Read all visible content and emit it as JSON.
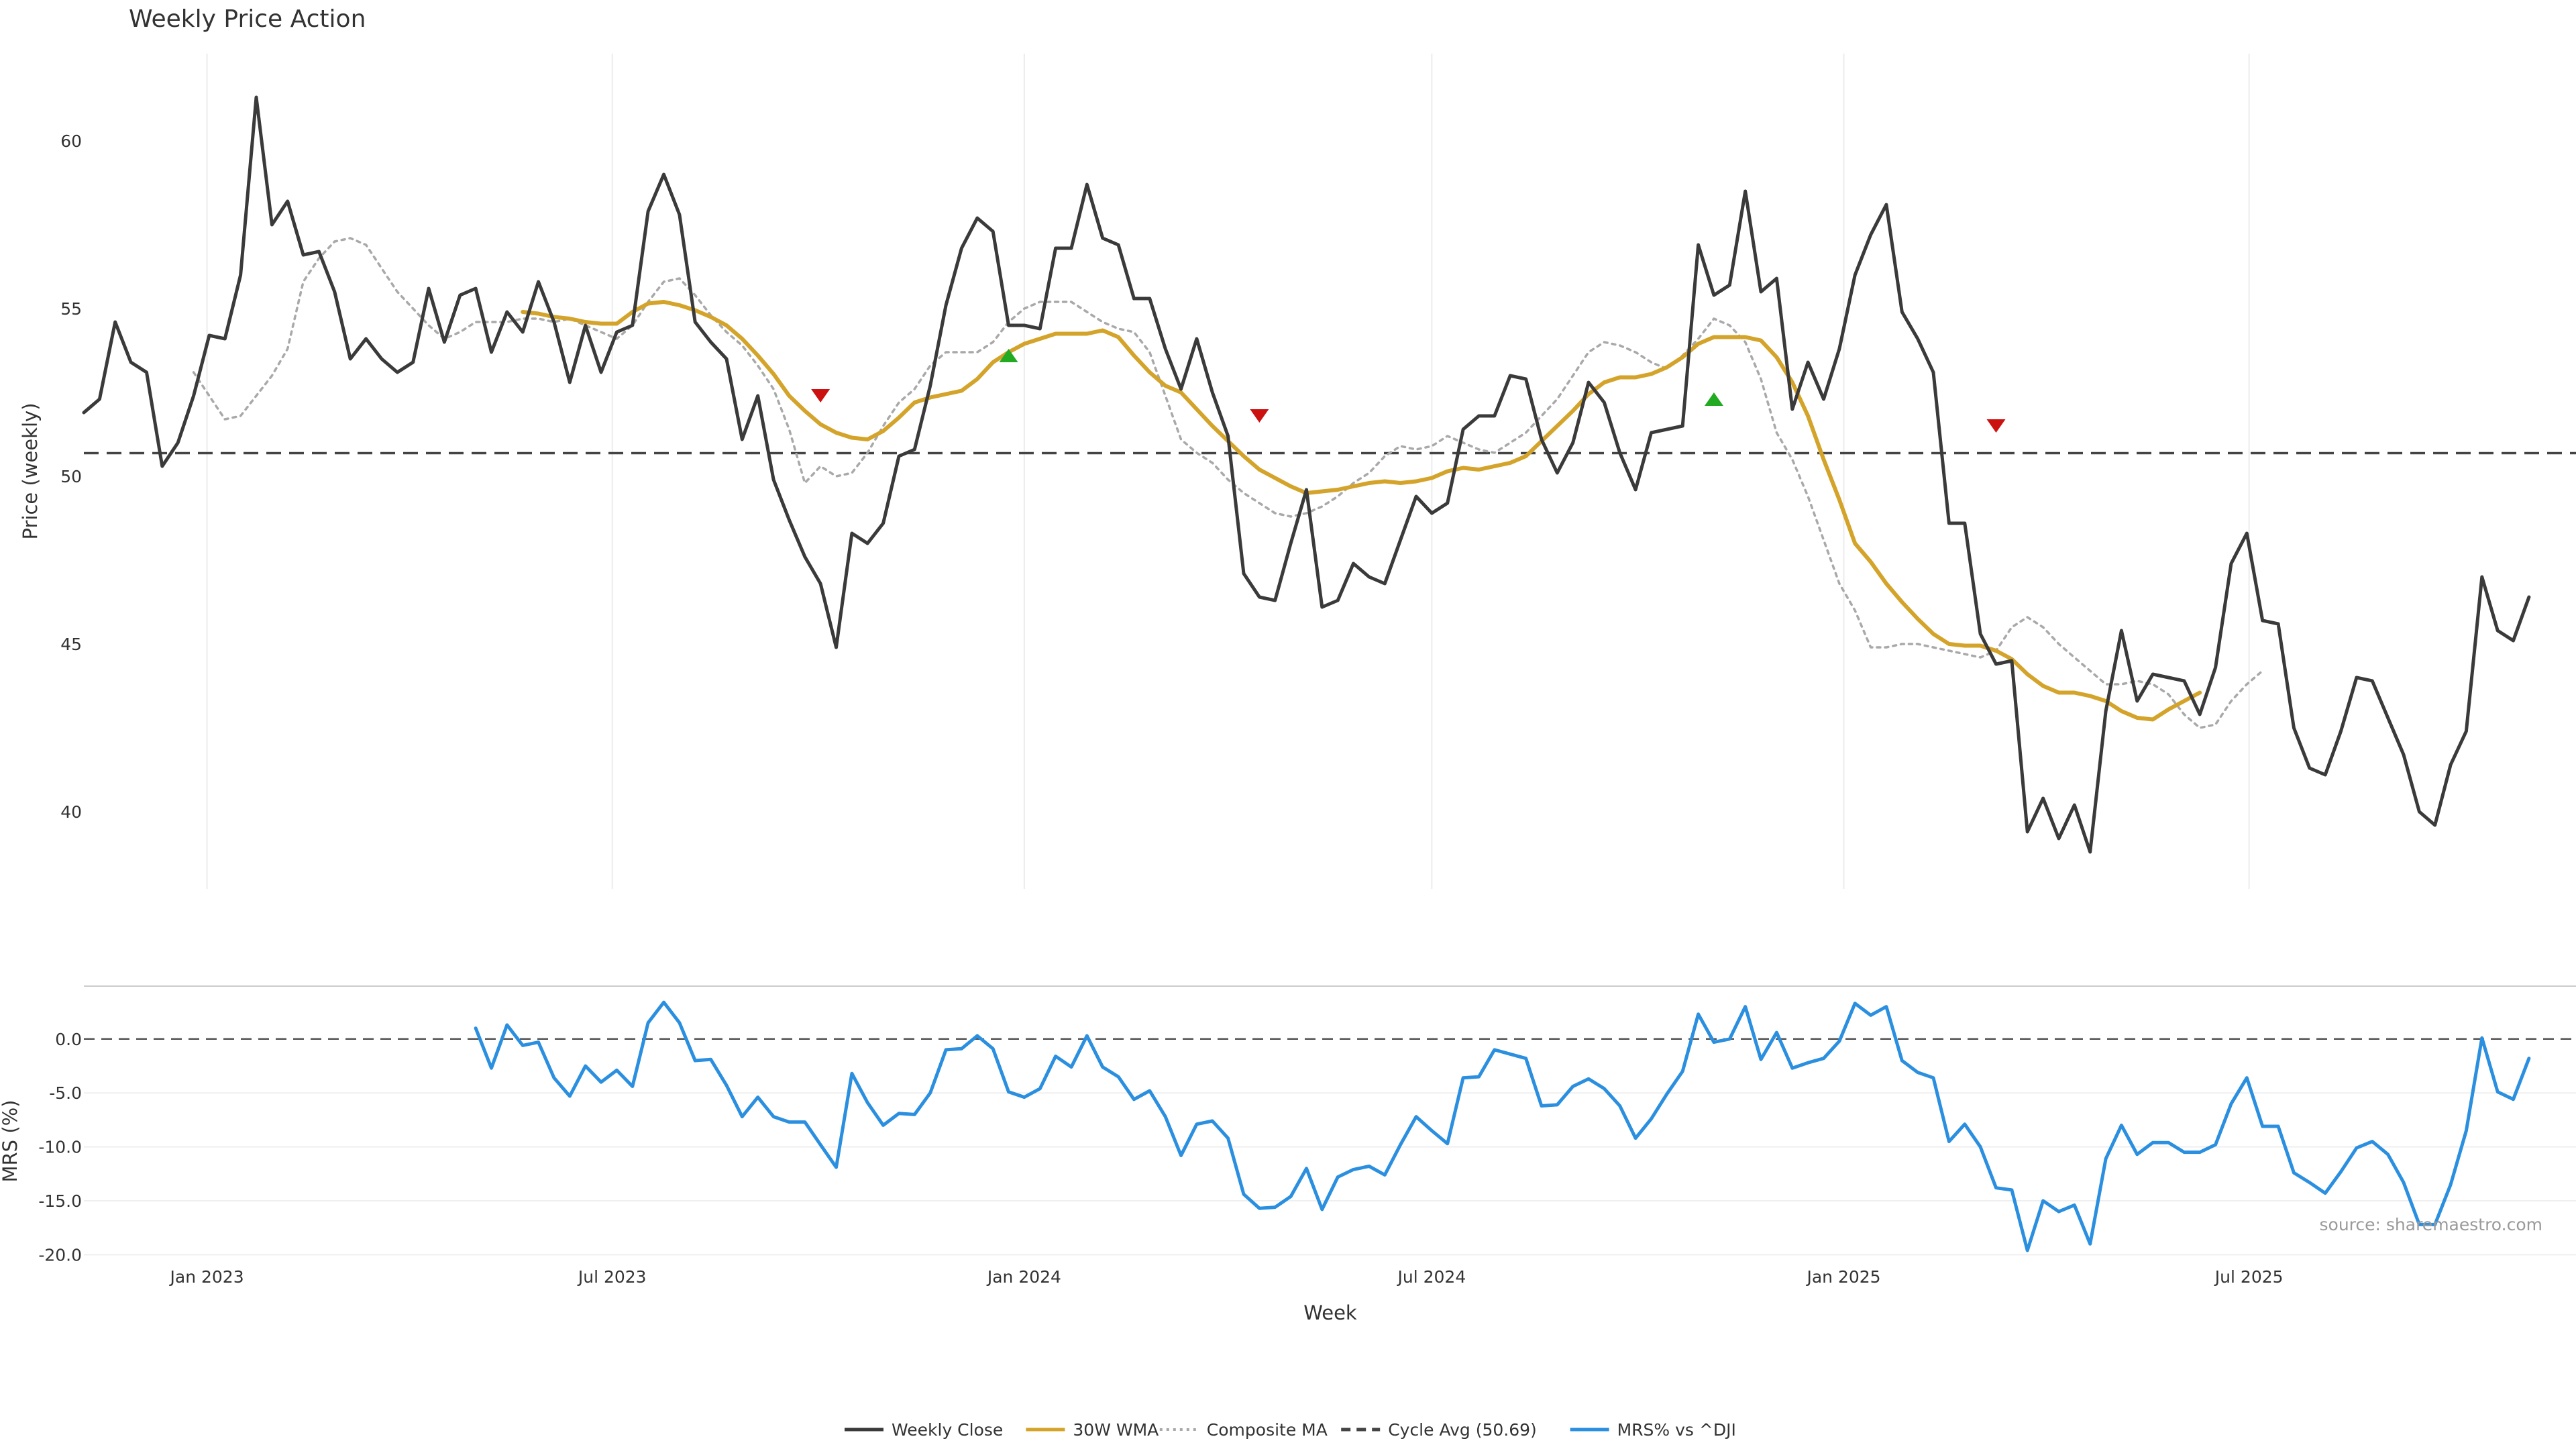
{
  "chart_data": {
    "title": "Weekly Price Action",
    "source": "source: sharemaestro.com",
    "x_label": "Week",
    "x_ticks": [
      {
        "date": "2023-01-01",
        "label": "Jan 2023"
      },
      {
        "date": "2023-07-01",
        "label": "Jul 2023"
      },
      {
        "date": "2024-01-01",
        "label": "Jan 2024"
      },
      {
        "date": "2024-07-01",
        "label": "Jul 2024"
      },
      {
        "date": "2025-01-01",
        "label": "Jan 2025"
      },
      {
        "date": "2025-07-01",
        "label": "Jul 2025"
      }
    ],
    "x_range": [
      "2022-11-07",
      "2025-11-24"
    ],
    "price_panel": {
      "type": "line",
      "ylabel": "Price (weekly)",
      "ylim": [
        37.7,
        62.6
      ],
      "y_ticks": [
        "40",
        "45",
        "50",
        "55",
        "60"
      ],
      "grid_x": true,
      "cycle_avg": 50.69,
      "series": [
        {
          "name": "Weekly Close",
          "color": "#3a3a3a",
          "style": "solid",
          "start_date": "2022-11-07",
          "values": [
            51.9,
            52.3,
            54.6,
            53.4,
            53.1,
            50.3,
            51.0,
            52.4,
            54.2,
            54.1,
            56.0,
            61.3,
            57.5,
            58.2,
            56.6,
            56.7,
            55.5,
            53.5,
            54.1,
            53.5,
            53.1,
            53.4,
            55.6,
            54.0,
            55.4,
            55.6,
            53.7,
            54.9,
            54.3,
            55.8,
            54.6,
            52.8,
            54.5,
            53.1,
            54.3,
            54.5,
            57.9,
            59.0,
            57.8,
            54.6,
            54.0,
            53.5,
            51.1,
            52.4,
            49.9,
            48.7,
            47.6,
            46.8,
            44.9,
            48.3,
            48.0,
            48.6,
            50.6,
            50.8,
            52.7,
            55.1,
            56.8,
            57.7,
            57.3,
            54.5,
            54.5,
            54.4,
            56.8,
            56.8,
            58.7,
            57.1,
            56.9,
            55.3,
            55.3,
            53.8,
            52.6,
            54.1,
            52.5,
            51.2,
            47.1,
            46.4,
            46.3,
            48.0,
            49.6,
            46.1,
            46.3,
            47.4,
            47.0,
            46.8,
            48.1,
            49.4,
            48.9,
            49.2,
            51.4,
            51.8,
            51.8,
            53.0,
            52.9,
            51.1,
            50.1,
            51.0,
            52.8,
            52.2,
            50.7,
            49.6,
            51.3,
            51.4,
            51.5,
            56.9,
            55.4,
            55.7,
            58.5,
            55.5,
            55.9,
            52.0,
            53.4,
            52.3,
            53.8,
            56.0,
            57.2,
            58.1,
            54.9,
            54.1,
            53.1,
            48.6,
            48.6,
            45.3,
            44.4,
            44.5,
            39.4,
            40.4,
            39.2,
            40.2,
            38.8,
            43.0,
            45.4,
            43.3,
            44.1,
            44.0,
            43.9,
            42.9,
            44.3,
            47.4,
            48.3,
            45.7,
            45.6,
            42.5,
            41.3,
            41.1,
            42.4,
            44.0,
            43.9,
            42.8,
            41.7,
            40.0,
            39.6,
            41.4,
            42.4,
            47.0,
            45.4,
            45.1,
            46.4
          ]
        },
        {
          "name": "30W WMA",
          "color": "#d4a32a",
          "style": "solid",
          "start_date": "2023-05-22",
          "values": [
            54.9,
            54.85,
            54.75,
            54.7,
            54.6,
            54.55,
            54.55,
            54.9,
            55.15,
            55.2,
            55.1,
            54.95,
            54.75,
            54.5,
            54.1,
            53.6,
            53.05,
            52.4,
            51.95,
            51.55,
            51.3,
            51.15,
            51.1,
            51.35,
            51.75,
            52.2,
            52.35,
            52.45,
            52.55,
            52.9,
            53.4,
            53.7,
            53.95,
            54.1,
            54.25,
            54.25,
            54.25,
            54.35,
            54.15,
            53.6,
            53.1,
            52.7,
            52.5,
            52.0,
            51.5,
            51.05,
            50.6,
            50.2,
            49.95,
            49.7,
            49.5,
            49.55,
            49.6,
            49.7,
            49.8,
            49.85,
            49.8,
            49.85,
            49.95,
            50.15,
            50.25,
            50.2,
            50.3,
            50.4,
            50.6,
            51.05,
            51.5,
            51.95,
            52.45,
            52.8,
            52.95,
            52.95,
            53.05,
            53.25,
            53.55,
            53.95,
            54.15,
            54.15,
            54.15,
            54.05,
            53.55,
            52.8,
            51.8,
            50.5,
            49.3,
            48.0,
            47.45,
            46.8,
            46.25,
            45.75,
            45.3,
            45.0,
            44.95,
            44.95,
            44.8,
            44.55,
            44.1,
            43.75,
            43.55,
            43.55,
            43.45,
            43.3,
            43.0,
            42.8,
            42.75,
            43.05,
            43.3,
            43.55
          ]
        },
        {
          "name": "Composite MA",
          "color": "#a9a9a9",
          "style": "dotted",
          "start_date": "2022-12-26",
          "values": [
            53.1,
            52.4,
            51.7,
            51.8,
            52.4,
            53.0,
            53.8,
            55.8,
            56.5,
            57.0,
            57.1,
            56.9,
            56.2,
            55.5,
            55.0,
            54.5,
            54.1,
            54.3,
            54.6,
            54.6,
            54.6,
            54.7,
            54.7,
            54.6,
            54.7,
            54.5,
            54.3,
            54.1,
            54.5,
            55.2,
            55.8,
            55.9,
            55.4,
            54.8,
            54.3,
            53.9,
            53.3,
            52.6,
            51.4,
            49.8,
            50.3,
            50.0,
            50.1,
            50.7,
            51.5,
            52.2,
            52.6,
            53.3,
            53.7,
            53.7,
            53.7,
            54.0,
            54.6,
            55.0,
            55.2,
            55.2,
            55.2,
            54.9,
            54.6,
            54.4,
            54.3,
            53.7,
            52.4,
            51.1,
            50.7,
            50.4,
            49.9,
            49.5,
            49.2,
            48.9,
            48.8,
            48.9,
            49.1,
            49.4,
            49.8,
            50.1,
            50.6,
            50.9,
            50.8,
            50.9,
            51.2,
            51.0,
            50.8,
            50.7,
            51.0,
            51.3,
            51.8,
            52.3,
            53.0,
            53.7,
            54.0,
            53.9,
            53.7,
            53.4,
            53.2,
            53.6,
            54.1,
            54.7,
            54.5,
            54.0,
            52.9,
            51.3,
            50.5,
            49.4,
            48.1,
            46.8,
            46.0,
            44.9,
            44.9,
            45.0,
            45.0,
            44.9,
            44.8,
            44.7,
            44.6,
            44.8,
            45.5,
            45.8,
            45.5,
            45.0,
            44.6,
            44.2,
            43.8,
            43.8,
            43.9,
            43.8,
            43.5,
            42.9,
            42.5,
            42.6,
            43.3,
            43.8,
            44.2
          ]
        }
      ],
      "signals": [
        {
          "date": "2023-10-02",
          "value": 52.4,
          "direction": "down",
          "color": "#cc1111"
        },
        {
          "date": "2023-12-25",
          "value": 53.6,
          "direction": "up",
          "color": "#22aa22"
        },
        {
          "date": "2024-04-15",
          "value": 51.8,
          "direction": "down",
          "color": "#cc1111"
        },
        {
          "date": "2024-11-04",
          "value": 52.3,
          "direction": "up",
          "color": "#22aa22"
        },
        {
          "date": "2025-03-10",
          "value": 51.5,
          "direction": "down",
          "color": "#cc1111"
        }
      ]
    },
    "mrs_panel": {
      "type": "line",
      "ylabel": "MRS (%)",
      "ylim": [
        -20.1,
        4.9
      ],
      "y_ticks": [
        "0.0",
        "-5.0",
        "-10.0",
        "-15.0",
        "-20.0"
      ],
      "series": [
        {
          "name": "MRS% vs ^DJI",
          "color": "#2b8fe0",
          "style": "solid",
          "start_date": "2023-05-01",
          "values": [
            1.0,
            -2.7,
            1.3,
            -0.6,
            -0.3,
            -3.6,
            -5.3,
            -2.5,
            -4.0,
            -2.9,
            -4.4,
            1.5,
            3.4,
            1.5,
            -2.0,
            -1.9,
            -4.3,
            -7.2,
            -5.4,
            -7.2,
            -7.7,
            -7.7,
            -9.8,
            -11.9,
            -3.2,
            -5.9,
            -8.0,
            -6.9,
            -7.0,
            -5.0,
            -1.0,
            -0.9,
            0.3,
            -0.9,
            -4.9,
            -5.4,
            -4.6,
            -1.6,
            -2.6,
            0.3,
            -2.6,
            -3.5,
            -5.6,
            -4.8,
            -7.2,
            -10.8,
            -7.9,
            -7.6,
            -9.2,
            -14.4,
            -15.7,
            -15.6,
            -14.6,
            -12.0,
            -15.8,
            -12.8,
            -12.1,
            -11.8,
            -12.6,
            -9.8,
            -7.2,
            -8.5,
            -9.7,
            -3.6,
            -3.5,
            -1.0,
            -1.4,
            -1.8,
            -6.2,
            -6.1,
            -4.4,
            -3.7,
            -4.6,
            -6.2,
            -9.2,
            -7.4,
            -5.1,
            -3.0,
            2.3,
            -0.3,
            0.0,
            3.0,
            -1.9,
            0.6,
            -2.7,
            -2.2,
            -1.8,
            -0.2,
            3.3,
            2.2,
            3.0,
            -2.0,
            -3.1,
            -3.6,
            -9.5,
            -7.9,
            -10.0,
            -13.8,
            -14.0,
            -19.6,
            -15.0,
            -16.0,
            -15.4,
            -19.0,
            -11.1,
            -8.0,
            -10.7,
            -9.6,
            -9.6,
            -10.5,
            -10.5,
            -9.8,
            -6.0,
            -3.6,
            -8.1,
            -8.1,
            -12.4,
            -13.3,
            -14.3,
            -12.3,
            -10.1,
            -9.5,
            -10.7,
            -13.3,
            -17.2,
            -17.2,
            -13.5,
            -8.5,
            0.1,
            -4.9,
            -5.6,
            -1.8
          ]
        }
      ],
      "zero_line": 0.0
    },
    "legend": {
      "placement": "bottom-center",
      "entries": [
        {
          "label": "Weekly Close",
          "color": "#3a3a3a",
          "style": "solid"
        },
        {
          "label": "30W WMA",
          "color": "#d4a32a",
          "style": "solid"
        },
        {
          "label": "Composite MA",
          "color": "#a9a9a9",
          "style": "dotted"
        },
        {
          "label": "Cycle Avg (50.69)",
          "color": "#444444",
          "style": "dashed"
        },
        {
          "label": "MRS% vs ^DJI",
          "color": "#2b8fe0",
          "style": "solid"
        }
      ]
    }
  }
}
